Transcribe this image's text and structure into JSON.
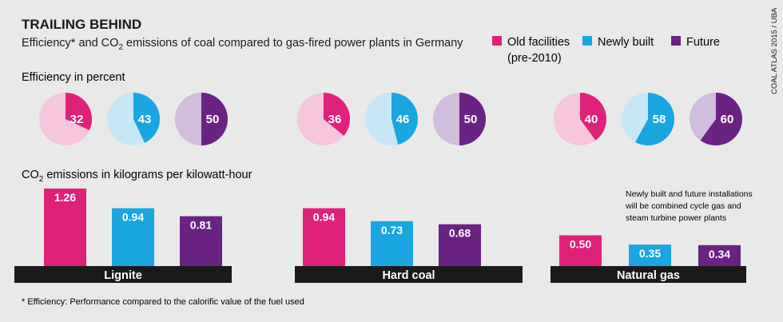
{
  "header": {
    "title": "TRAILING BEHIND",
    "subtitle_pre": "Efficiency* and CO",
    "subtitle_sub": "2",
    "subtitle_post": " emissions of coal compared to gas-fired power plants in Germany",
    "source": "COAL ATLAS 2015 / UBA"
  },
  "legend": [
    {
      "label": "Old facilities",
      "label2": "(pre-2010)",
      "color": "#e0217a"
    },
    {
      "label": "Newly built",
      "label2": "",
      "color": "#1aa6e0"
    },
    {
      "label": "Future",
      "label2": "",
      "color": "#6a2283"
    }
  ],
  "footnote": "* Efficiency: Performance compared to the calorific value of the fuel used",
  "chart_data": [
    {
      "type": "pie",
      "title": "Efficiency in percent",
      "unit": "percent",
      "groups": [
        {
          "name": "Lignite",
          "values": [
            32,
            43,
            50
          ]
        },
        {
          "name": "Hard coal",
          "values": [
            36,
            46,
            50
          ]
        },
        {
          "name": "Natural gas",
          "values": [
            40,
            58,
            60
          ]
        }
      ],
      "series": [
        "Old facilities",
        "Newly built",
        "Future"
      ],
      "colors": [
        "#e0217a",
        "#1aa6e0",
        "#6a2283"
      ],
      "light_colors": [
        "#f6c6dd",
        "#c7e6f6",
        "#d1bddd"
      ]
    },
    {
      "type": "bar",
      "title_pre": "CO",
      "title_sub": "2",
      "title_post": " emissions in kilograms per kilowatt-hour",
      "categories": [
        "Lignite",
        "Hard coal",
        "Natural gas"
      ],
      "series": [
        {
          "name": "Old facilities",
          "values": [
            1.26,
            0.94,
            0.5
          ],
          "labels": [
            "1.26",
            "0.94",
            "0.50"
          ]
        },
        {
          "name": "Newly built",
          "values": [
            0.94,
            0.73,
            0.35
          ],
          "labels": [
            "0.94",
            "0.73",
            "0.35"
          ]
        },
        {
          "name": "Future",
          "values": [
            0.81,
            0.68,
            0.34
          ],
          "labels": [
            "0.81",
            "0.68",
            "0.34"
          ]
        }
      ],
      "annotation": [
        "Newly built and future installations",
        "will be combined cycle gas and",
        "steam turbine power plants"
      ]
    }
  ]
}
